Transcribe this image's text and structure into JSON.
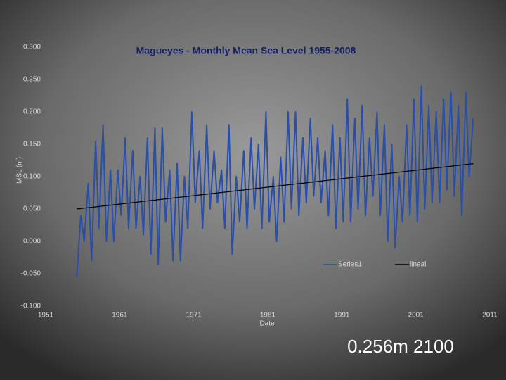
{
  "chart_data": {
    "type": "line",
    "title": "Magueyes - Monthly Mean Sea Level 1955-2008",
    "ylabel": "MSL (m)",
    "xlabel": "Date",
    "annotation": "0.256m  2100",
    "xlim": [
      1951,
      2011
    ],
    "xticks": [
      1951,
      1961,
      1971,
      1981,
      1991,
      2001,
      2011
    ],
    "ylim": [
      -0.1,
      0.3
    ],
    "yticks": [
      {
        "value": -0.1,
        "label": "-0.100"
      },
      {
        "value": -0.05,
        "label": "-0.050"
      },
      {
        "value": 0,
        "label": "0.000"
      },
      {
        "value": 0.05,
        "label": "0.050"
      },
      {
        "value": 0.1,
        "label": "0.100"
      },
      {
        "value": 0.15,
        "label": "0.150"
      },
      {
        "value": 0.2,
        "label": "0.200"
      },
      {
        "value": 0.25,
        "label": "0.250"
      },
      {
        "value": 0.3,
        "label": "0.300"
      }
    ],
    "series": [
      {
        "name": "Series1",
        "color": "#2a4fa8",
        "x": [
          1955.2,
          1955.75,
          1956.2,
          1956.75,
          1957.2,
          1957.75,
          1958.2,
          1958.75,
          1959.2,
          1959.75,
          1960.2,
          1960.75,
          1961.2,
          1961.75,
          1962.2,
          1962.75,
          1963.2,
          1963.75,
          1964.2,
          1964.75,
          1965.2,
          1965.75,
          1966.2,
          1966.75,
          1967.2,
          1967.75,
          1968.2,
          1968.75,
          1969.2,
          1969.75,
          1970.2,
          1970.75,
          1971.2,
          1971.75,
          1972.2,
          1972.75,
          1973.2,
          1973.75,
          1974.2,
          1974.75,
          1975.2,
          1975.75,
          1976.2,
          1976.75,
          1977.2,
          1977.75,
          1978.2,
          1978.75,
          1979.2,
          1979.75,
          1980.2,
          1980.75,
          1981.2,
          1981.75,
          1982.2,
          1982.75,
          1983.2,
          1983.75,
          1984.2,
          1984.75,
          1985.2,
          1985.75,
          1986.2,
          1986.75,
          1987.2,
          1987.75,
          1988.2,
          1988.75,
          1989.2,
          1989.75,
          1990.2,
          1990.75,
          1991.2,
          1991.75,
          1992.2,
          1992.75,
          1993.2,
          1993.75,
          1994.2,
          1994.75,
          1995.2,
          1995.75,
          1996.2,
          1996.75,
          1997.2,
          1997.75,
          1998.2,
          1998.75,
          1999.2,
          1999.75,
          2000.2,
          2000.75,
          2001.2,
          2001.75,
          2002.2,
          2002.75,
          2003.2,
          2003.75,
          2004.2,
          2004.75,
          2005.2,
          2005.75,
          2006.2,
          2006.75,
          2007.2,
          2007.75,
          2008.2,
          2008.75
        ],
        "values": [
          -0.055,
          0.04,
          0.0,
          0.09,
          -0.03,
          0.155,
          0.02,
          0.18,
          0.0,
          0.11,
          0.0,
          0.11,
          0.04,
          0.16,
          0.02,
          0.14,
          0.02,
          0.1,
          0.01,
          0.16,
          -0.02,
          0.175,
          -0.035,
          0.175,
          0.03,
          0.11,
          -0.03,
          0.12,
          -0.03,
          0.1,
          0.02,
          0.2,
          0.06,
          0.14,
          0.02,
          0.18,
          0.05,
          0.14,
          0.06,
          0.11,
          0.02,
          0.18,
          -0.02,
          0.1,
          0.03,
          0.14,
          0.02,
          0.16,
          0.05,
          0.15,
          0.02,
          0.2,
          0.03,
          0.1,
          0.0,
          0.13,
          0.03,
          0.2,
          0.05,
          0.2,
          0.04,
          0.16,
          0.06,
          0.19,
          0.07,
          0.16,
          0.06,
          0.14,
          0.04,
          0.18,
          0.02,
          0.16,
          0.03,
          0.22,
          0.03,
          0.19,
          0.05,
          0.21,
          0.04,
          0.16,
          0.07,
          0.2,
          0.04,
          0.18,
          0.0,
          0.15,
          -0.01,
          0.1,
          0.03,
          0.18,
          0.04,
          0.22,
          0.03,
          0.24,
          0.05,
          0.21,
          0.06,
          0.2,
          0.06,
          0.22,
          0.08,
          0.23,
          0.07,
          0.21,
          0.04,
          0.23,
          0.1,
          0.19
        ]
      },
      {
        "name": "lineal",
        "color": "#000000",
        "x": [
          1955.2,
          2008.75
        ],
        "values": [
          0.05,
          0.12
        ]
      }
    ]
  }
}
